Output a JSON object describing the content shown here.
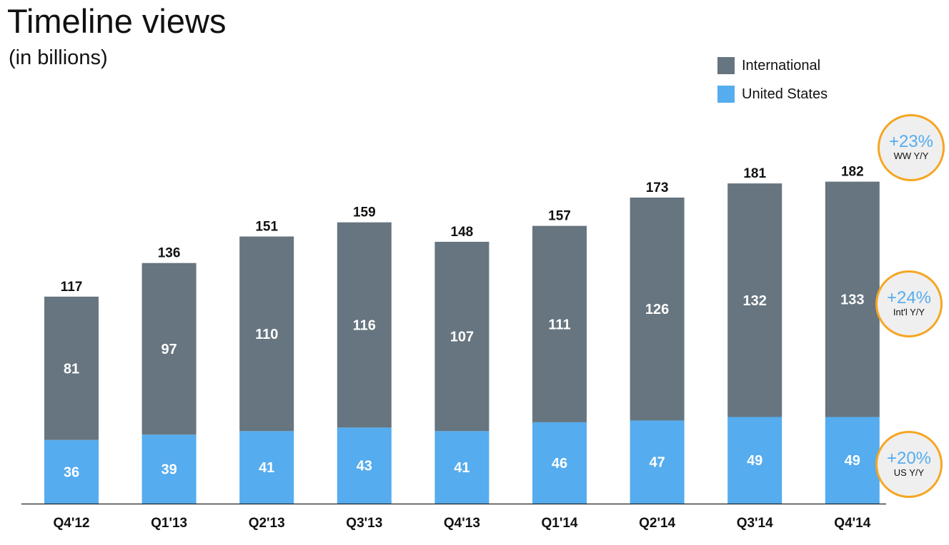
{
  "chart_data": {
    "type": "bar",
    "stacked": true,
    "title": "Timeline views",
    "subtitle": "(in billions)",
    "categories": [
      "Q4'12",
      "Q1'13",
      "Q2'13",
      "Q3'13",
      "Q4'13",
      "Q1'14",
      "Q2'14",
      "Q3'14",
      "Q4'14"
    ],
    "series": [
      {
        "name": "United States",
        "color": "#55acee",
        "values": [
          36,
          39,
          41,
          43,
          41,
          46,
          47,
          49,
          49
        ]
      },
      {
        "name": "International",
        "color": "#66757f",
        "values": [
          81,
          97,
          110,
          116,
          107,
          111,
          126,
          132,
          133
        ]
      }
    ],
    "totals": [
      117,
      136,
      151,
      159,
      148,
      157,
      173,
      181,
      182
    ],
    "ylim": [
      0,
      200
    ],
    "grid": false,
    "legend_position": "top-right",
    "legend_order": [
      "International",
      "United States"
    ],
    "annotations": [
      {
        "value": "+23%",
        "label": "WW Y/Y"
      },
      {
        "value": "+24%",
        "label": "Int'l Y/Y"
      },
      {
        "value": "+20%",
        "label": "US Y/Y"
      }
    ]
  },
  "colors": {
    "accent_text": "#55acee",
    "badge_border": "#f5a623",
    "badge_fill": "#efefef",
    "segment_label": "#ffffff",
    "total_label": "#111111"
  }
}
